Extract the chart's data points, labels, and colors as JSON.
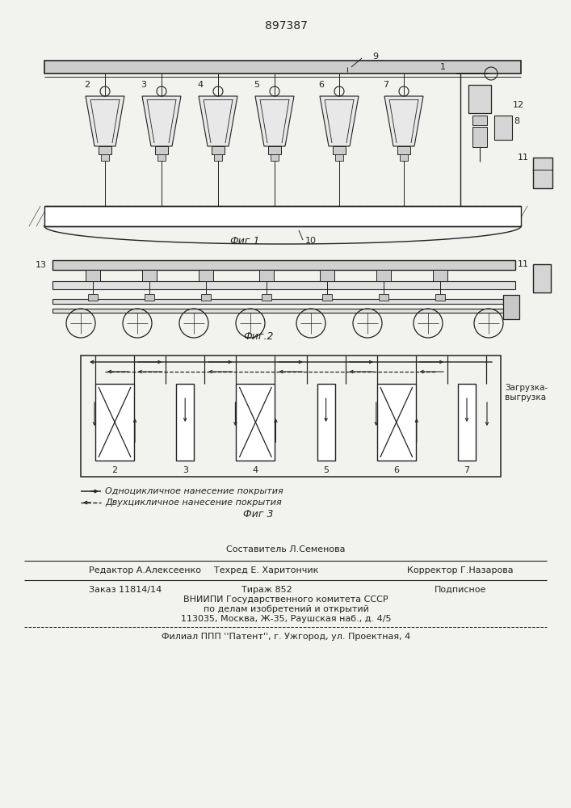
{
  "patent_number": "897387",
  "bg_color": "#f2f2ee",
  "line_color": "#222222",
  "footer": {
    "sestavitel": "Составитель Л.Семенова",
    "redaktor": "Редактор А.Алексеенко",
    "tehred": "Техред Е. Харитончик",
    "korrektor": "Корректор Г.Назарова",
    "zakaz": "Заказ 11814/14",
    "tirazh": "Тираж 852",
    "podpisnoe": "Подписное",
    "vniip1": "ВНИИПИ Государственного комитета СССР",
    "vniip2": "по делам изобретений и открытий",
    "vniip3": "113035, Москва, Ж-35, Раушская наб., д. 4/5",
    "filial": "Филиал ППП ''Патент'', г. Ужгород, ул. Проектная, 4"
  }
}
